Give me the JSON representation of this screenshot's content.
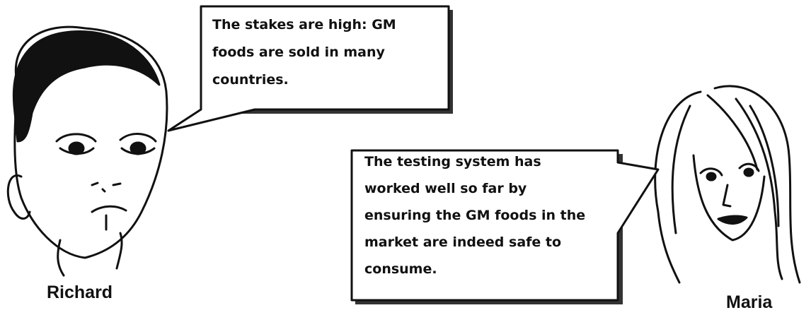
{
  "speakers": [
    {
      "name": "Richard",
      "speech": [
        "The stakes are high: GM",
        "foods are sold in many",
        "countries."
      ]
    },
    {
      "name": "Maria",
      "speech": [
        "The testing system has",
        "worked well so far by",
        "ensuring the GM foods in the",
        "market are indeed safe to",
        "consume."
      ]
    }
  ]
}
